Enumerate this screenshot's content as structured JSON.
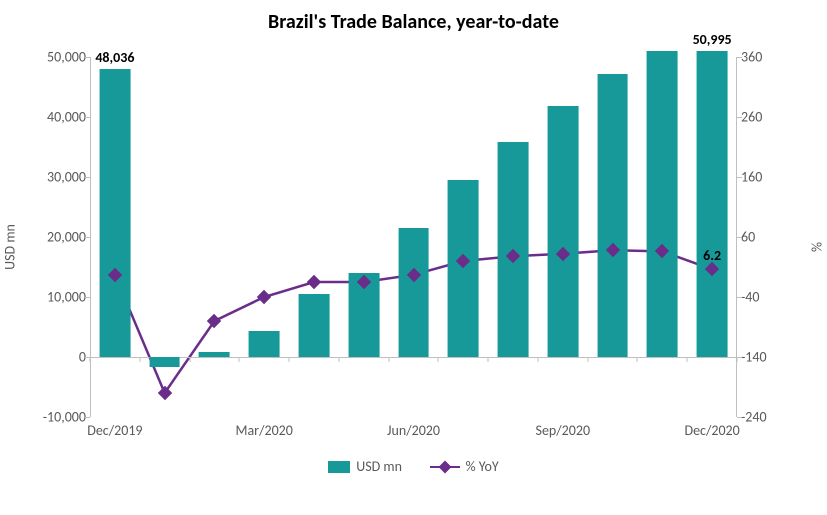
{
  "chart": {
    "type": "bar+line",
    "title": "Brazil's Trade Balance, year-to-date",
    "title_fontsize": 20,
    "title_color": "#000000",
    "background_color": "#ffffff",
    "axis_text_color": "#595959",
    "axis_fontsize": 14,
    "y_left": {
      "label": "USD mn",
      "min": -10000,
      "max": 50000,
      "tick_step": 10000,
      "ticks": [
        "-10,000",
        "0",
        "10,000",
        "20,000",
        "30,000",
        "40,000",
        "50,000"
      ],
      "tick_values": [
        -10000,
        0,
        10000,
        20000,
        30000,
        40000,
        50000
      ]
    },
    "y_right": {
      "label": "%",
      "min": -240,
      "max": 360,
      "tick_step": 100,
      "ticks": [
        "-240",
        "-140",
        "-40",
        "60",
        "160",
        "260",
        "360"
      ],
      "tick_values": [
        -240,
        -140,
        -40,
        60,
        160,
        260,
        360
      ]
    },
    "x_categories": [
      "Dec/2019",
      "Jan/2020",
      "Feb/2020",
      "Mar/2020",
      "Apr/2020",
      "May/2020",
      "Jun/2020",
      "Jul/2020",
      "Aug/2020",
      "Sep/2020",
      "Oct/2020",
      "Nov/2020",
      "Dec/2020"
    ],
    "x_labels_shown": {
      "0": "Dec/2019",
      "3": "Mar/2020",
      "6": "Jun/2020",
      "9": "Sep/2020",
      "12": "Dec/2020"
    },
    "bars": {
      "series_name": "USD mn",
      "color": "#179999",
      "values": [
        48036,
        -1700,
        800,
        4400,
        10500,
        14000,
        21500,
        29500,
        35900,
        41800,
        47200,
        50995,
        50995
      ],
      "bar_width_frac": 0.62,
      "data_labels": {
        "0": "48,036",
        "12": "50,995"
      },
      "data_label_fontsize": 14
    },
    "line": {
      "series_name": "% YoY",
      "color": "#6b2d8a",
      "marker_fill": "#6b2d8a",
      "marker_border": "#6b2d8a",
      "line_width": 2.5,
      "marker_size": 10,
      "marker_shape": "diamond",
      "values": [
        -3,
        -200,
        -80,
        -40,
        -15,
        -15,
        -3,
        20,
        28,
        32,
        38,
        36,
        6.2
      ],
      "data_labels": {
        "12": "6.2"
      },
      "data_label_fontsize": 14
    },
    "legend": {
      "items": [
        "USD mn",
        "% YoY"
      ],
      "position": "bottom",
      "text_color": "#595959",
      "fontsize": 14
    }
  }
}
